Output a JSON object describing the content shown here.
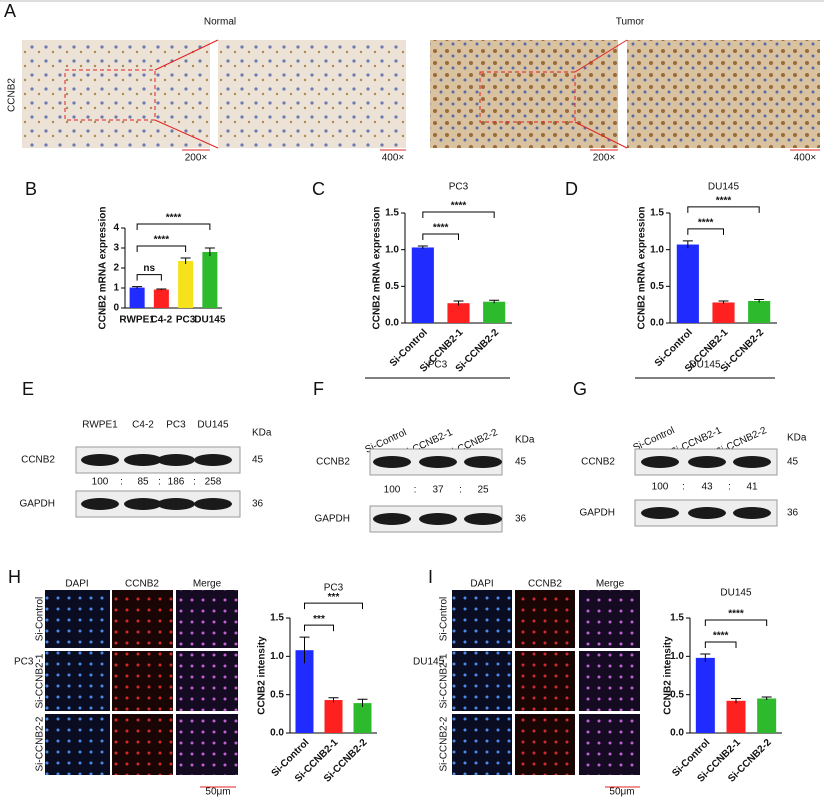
{
  "panel_labels": [
    "A",
    "B",
    "C",
    "D",
    "E",
    "F",
    "G",
    "H",
    "I"
  ],
  "panel_a": {
    "row_label": "CCNB2",
    "groups": [
      "Normal",
      "Tumor"
    ],
    "magnifications": [
      "200×",
      "400×",
      "200×",
      "400×"
    ]
  },
  "chart_data": [
    {
      "type": "bar",
      "y_label": "CCNB2 mRNA expression",
      "categories": [
        "RWPE1",
        "C4-2",
        "PC3",
        "DU145"
      ],
      "values": [
        1.02,
        0.92,
        2.35,
        2.8
      ],
      "errors": [
        0.05,
        0.03,
        0.15,
        0.2
      ],
      "colors": [
        "#1f2bff",
        "#ff2020",
        "#f5e21a",
        "#2dbb2d"
      ],
      "ylim": [
        0,
        4
      ],
      "yticks": [
        0,
        1,
        2,
        3,
        4
      ],
      "comparisons": [
        {
          "groups": [
            0,
            1
          ],
          "label": "ns"
        },
        {
          "groups": [
            0,
            2
          ],
          "label": "****"
        },
        {
          "groups": [
            0,
            3
          ],
          "label": "****"
        }
      ]
    },
    {
      "type": "bar",
      "title": "PC3",
      "y_label": "CCNB2 mRNA expression",
      "categories": [
        "Si-Control",
        "Si-CCNB2-1",
        "Si-CCNB2-2"
      ],
      "values": [
        1.03,
        0.27,
        0.29
      ],
      "errors": [
        0.02,
        0.03,
        0.02
      ],
      "colors": [
        "#1f2bff",
        "#ff2020",
        "#2dbb2d"
      ],
      "ylim": [
        0,
        1.5
      ],
      "yticks": [
        {
          "value": 0,
          "label": "0.0"
        },
        0.5,
        {
          "value": 1,
          "label": "1.0"
        },
        1.5
      ],
      "comparisons": [
        {
          "groups": [
            0,
            1
          ],
          "label": "****"
        },
        {
          "groups": [
            0,
            2
          ],
          "label": "****"
        }
      ]
    },
    {
      "type": "bar",
      "title": "DU145",
      "y_label": "CCNB2 mRNA expression",
      "categories": [
        "Si-Control",
        "Si-CCNB2-1",
        "Si-CCNB2-2"
      ],
      "values": [
        1.07,
        0.28,
        0.3
      ],
      "errors": [
        0.05,
        0.02,
        0.02
      ],
      "colors": [
        "#1f2bff",
        "#ff2020",
        "#2dbb2d"
      ],
      "ylim": [
        0,
        1.5
      ],
      "yticks": [
        {
          "value": 0,
          "label": "0.0"
        },
        0.5,
        {
          "value": 1,
          "label": "1.0"
        },
        1.5
      ],
      "comparisons": [
        {
          "groups": [
            0,
            1
          ],
          "label": "****"
        },
        {
          "groups": [
            0,
            2
          ],
          "label": "****"
        }
      ]
    },
    {
      "type": "bar",
      "title": "PC3",
      "y_label": "CCNB2 intensity",
      "categories": [
        "Si-Control",
        "Si-CCNB2-1",
        "Si-CCNB2-2"
      ],
      "values": [
        1.08,
        0.43,
        0.39
      ],
      "errors": [
        0.17,
        0.03,
        0.05
      ],
      "colors": [
        "#1f2bff",
        "#ff2020",
        "#2dbb2d"
      ],
      "ylim": [
        0,
        1.5
      ],
      "yticks": [
        {
          "value": 0,
          "label": "0.0"
        },
        0.5,
        {
          "value": 1,
          "label": "1.0"
        },
        1.5
      ],
      "comparisons": [
        {
          "groups": [
            0,
            1
          ],
          "label": "***"
        },
        {
          "groups": [
            0,
            2
          ],
          "label": "***"
        }
      ]
    },
    {
      "type": "bar",
      "title": "DU145",
      "y_label": "CCNB2 intensity",
      "categories": [
        "Si-Control",
        "Si-CCNB2-1",
        "Si-CCNB2-2"
      ],
      "values": [
        0.98,
        0.42,
        0.45
      ],
      "errors": [
        0.05,
        0.03,
        0.02
      ],
      "colors": [
        "#1f2bff",
        "#ff2020",
        "#2dbb2d"
      ],
      "ylim": [
        0,
        1.5
      ],
      "yticks": [
        {
          "value": 0,
          "label": "0.0"
        },
        0.5,
        {
          "value": 1,
          "label": "1.0"
        },
        1.5
      ],
      "comparisons": [
        {
          "groups": [
            0,
            1
          ],
          "label": "****"
        },
        {
          "groups": [
            0,
            2
          ],
          "label": "****"
        }
      ]
    }
  ],
  "blots": [
    {
      "columns": [
        "RWPE1",
        "C4-2",
        "PC3",
        "DU145"
      ],
      "unit": "KDa",
      "rows": [
        {
          "name": "CCNB2",
          "kda": 45
        },
        {
          "name": "GAPDH",
          "kda": 36
        }
      ],
      "ratios": [
        100,
        85,
        186,
        258
      ],
      "separator": ":"
    },
    {
      "title": "PC3",
      "columns": [
        "Si-Control",
        "Si-CCNB2-1",
        "Si-CCNB2-2"
      ],
      "unit": "KDa",
      "rows": [
        {
          "name": "CCNB2",
          "kda": 45
        },
        {
          "name": "GAPDH",
          "kda": 36
        }
      ],
      "ratios": [
        100,
        37,
        25
      ],
      "separator": ":"
    },
    {
      "title": "DU145",
      "columns": [
        "Si-Control",
        "Si-CCNB2-1",
        "Si-CCNB2-2"
      ],
      "unit": "KDa",
      "rows": [
        {
          "name": "CCNB2",
          "kda": 45
        },
        {
          "name": "GAPDH",
          "kda": 36
        }
      ],
      "ratios": [
        100,
        43,
        41
      ],
      "separator": ":"
    }
  ],
  "if_panels": [
    {
      "channels": [
        "DAPI",
        "CCNB2",
        "Merge"
      ],
      "rows": [
        "Si-Control",
        "Si-CCNB2-1",
        "Si-CCNB2-2"
      ],
      "cell_line": "PC3",
      "scale_bar": "50μm"
    },
    {
      "channels": [
        "DAPI",
        "CCNB2",
        "Merge"
      ],
      "rows": [
        "Si-Control",
        "Si-CCNB2-1",
        "Si-CCNB2-2"
      ],
      "cell_line": "DU145",
      "scale_bar": "50μm"
    }
  ]
}
